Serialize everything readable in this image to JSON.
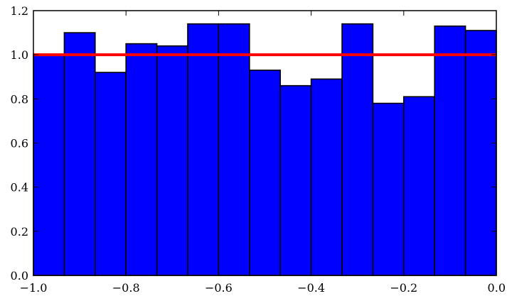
{
  "chart_data": {
    "type": "bar",
    "title": "",
    "xlabel": "",
    "ylabel": "",
    "xlim": [
      -1.0,
      0.0
    ],
    "ylim": [
      0.0,
      1.2
    ],
    "bin_edges": [
      -1.0,
      -0.9333,
      -0.8667,
      -0.8,
      -0.7333,
      -0.6667,
      -0.6,
      -0.5333,
      -0.4667,
      -0.4,
      -0.3333,
      -0.2667,
      -0.2,
      -0.1333,
      -0.0667,
      0.0
    ],
    "values": [
      1.0,
      1.1,
      0.92,
      1.05,
      1.04,
      1.14,
      1.14,
      0.93,
      0.86,
      0.89,
      1.14,
      0.78,
      0.81,
      1.13,
      1.11
    ],
    "reference_line": {
      "y": 1.0,
      "color": "#ff0000"
    },
    "bar_color": "#0000ff",
    "edge_color": "#000000",
    "grid": false,
    "xticks": [
      -1.0,
      -0.8,
      -0.6,
      -0.4,
      -0.2,
      0.0
    ],
    "xtick_labels": [
      "−1.0",
      "−0.8",
      "−0.6",
      "−0.4",
      "−0.2",
      "0.0"
    ],
    "yticks": [
      0.0,
      0.2,
      0.4,
      0.6,
      0.8,
      1.0,
      1.2
    ],
    "ytick_labels": [
      "0.0",
      "0.2",
      "0.4",
      "0.6",
      "0.8",
      "1.0",
      "1.2"
    ]
  }
}
